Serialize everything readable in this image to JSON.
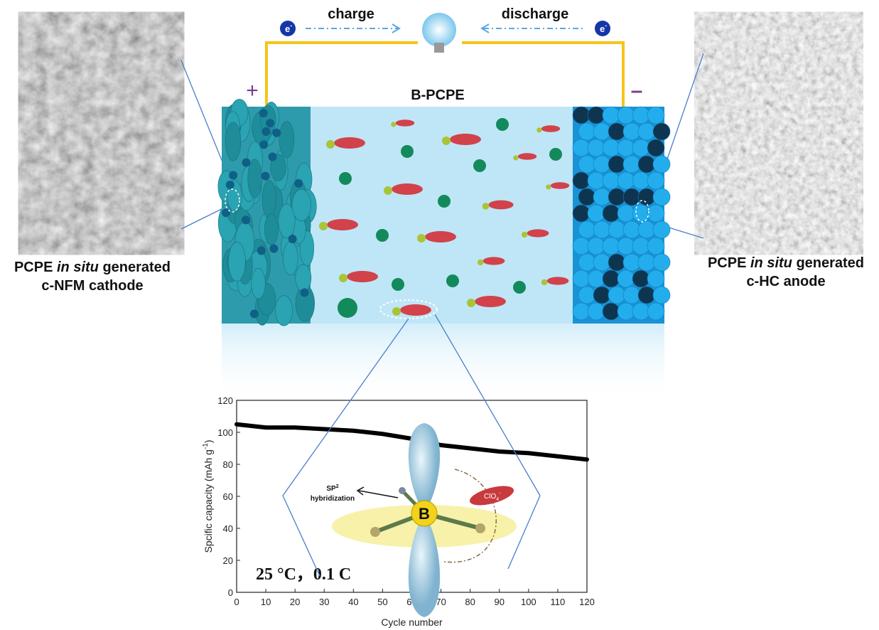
{
  "circuit": {
    "charge": "charge",
    "discharge": "discharge",
    "electron_left": "e",
    "electron_right": "e",
    "electron_sup": "-",
    "plus": "+",
    "minus": "–",
    "electrolyte": "B-PCPE"
  },
  "cathode_label": {
    "prefix": "PCPE",
    "italic": "in situ",
    "suffix": "generated",
    "line2": "c-NFM cathode"
  },
  "anode_label": {
    "prefix": "PCPE",
    "italic": "in situ",
    "suffix": "generated",
    "line2": "c-HC anode"
  },
  "inset": {
    "hybrid_top": "SP",
    "hybrid_sup": "2",
    "hybrid_bottom": "hybridization",
    "boron": "B",
    "anion": "ClO",
    "anion_sub": "4",
    "anion_sup": "-"
  },
  "chart_data": {
    "type": "line",
    "ylabel": "Spcific capacity (mAh g",
    "ylabel_sup": "-1",
    "ylabel_end": ")",
    "xlabel": "Cycle number",
    "annotation": "25 °C，0.1 C",
    "x": [
      0,
      10,
      20,
      30,
      40,
      50,
      60,
      70,
      80,
      90,
      100,
      110,
      120
    ],
    "series": [
      {
        "color": "#000000",
        "values": [
          105,
          103,
          103,
          102,
          101,
          99,
          96,
          92,
          90,
          88,
          87,
          85,
          83
        ]
      }
    ],
    "xlim": [
      0,
      120
    ],
    "ylim": [
      0,
      120
    ],
    "xticks": [
      0,
      10,
      20,
      30,
      40,
      50,
      60,
      70,
      80,
      90,
      100,
      110,
      120
    ],
    "yticks": [
      0,
      20,
      40,
      60,
      80,
      100,
      120
    ]
  }
}
